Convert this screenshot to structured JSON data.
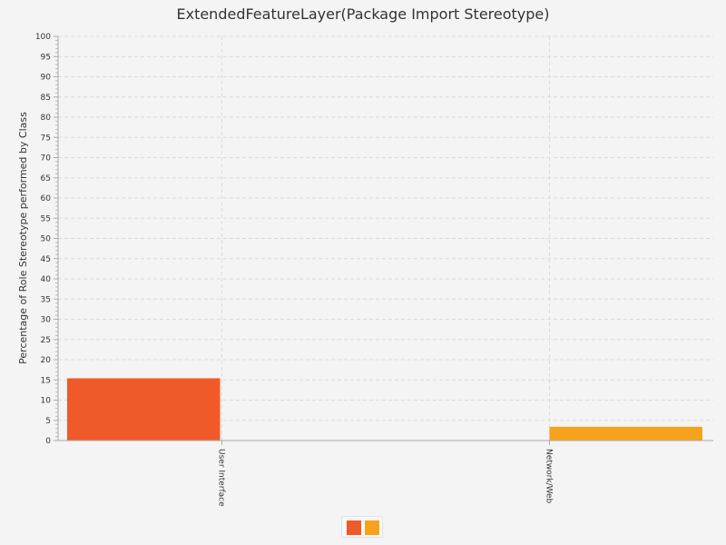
{
  "chart_data": {
    "type": "bar",
    "title": "ExtendedFeatureLayer(Package Import Stereotype)",
    "ylabel": "Percentage of Role Stereotype performed by Class",
    "xlabel": "",
    "categories": [
      "User Interface",
      "Network/Web"
    ],
    "series": [
      {
        "values": [
          15.4,
          0
        ],
        "color": "#f05a28"
      },
      {
        "values": [
          0,
          3.4
        ],
        "color": "#f7a21b"
      }
    ],
    "ylim": [
      0,
      100
    ],
    "y_ticks": [
      "0",
      "5",
      "10",
      "15",
      "20",
      "25",
      "30",
      "35",
      "40",
      "45",
      "50",
      "55",
      "60",
      "65",
      "70",
      "75",
      "80",
      "85",
      "90",
      "95",
      "100"
    ],
    "grid": true,
    "legend": "bottom-center"
  }
}
